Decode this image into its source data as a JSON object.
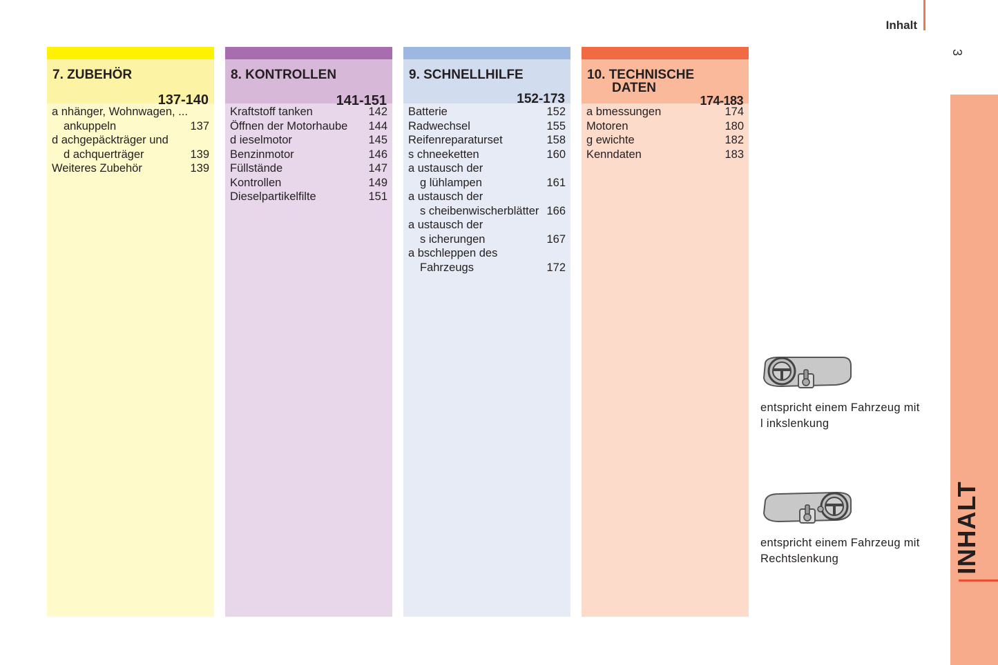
{
  "header": {
    "title": "Inhalt",
    "page_number": "3"
  },
  "side_tab": {
    "label": "INHALT"
  },
  "columns": [
    {
      "title": "7. ZUBEHÖR",
      "range": "137-140",
      "items": [
        {
          "line1": "a nhänger, Wohnwagen, ...",
          "line2": "ankuppeln",
          "page": "137"
        },
        {
          "line1": "d achgepäckträger und",
          "line2": "d achquerträger",
          "page": "139"
        },
        {
          "line1": "Weiteres Zubehör",
          "line2": "",
          "page": "139"
        }
      ]
    },
    {
      "title": "8. KONTROLLEN",
      "range": "141-151",
      "items": [
        {
          "line1": "Kraftstoff tanken",
          "line2": "",
          "page": "142"
        },
        {
          "line1": "Öffnen der Motorhaube",
          "line2": "",
          "page": "144"
        },
        {
          "line1": "d ieselmotor",
          "line2": "",
          "page": "145"
        },
        {
          "line1": "Benzinmotor",
          "line2": "",
          "page": "146"
        },
        {
          "line1": "Füllstände",
          "line2": "",
          "page": "147"
        },
        {
          "line1": "Kontrollen",
          "line2": "",
          "page": "149"
        },
        {
          "line1": "Dieselpartikelfilte",
          "line2": "",
          "page": "151"
        }
      ]
    },
    {
      "title": "9. SCHNELLHILFE",
      "range": "152-173",
      "items": [
        {
          "line1": "Batterie",
          "line2": "",
          "page": "152"
        },
        {
          "line1": "Radwechsel",
          "line2": "",
          "page": "155"
        },
        {
          "line1": "Reifenreparaturset",
          "line2": "",
          "page": "158"
        },
        {
          "line1": "s chneeketten",
          "line2": "",
          "page": "160"
        },
        {
          "line1": "a ustausch der",
          "line2": "g lühlampen",
          "page": "161"
        },
        {
          "line1": "a ustausch der",
          "line2": "s cheibenwischerblätter",
          "page": "166"
        },
        {
          "line1": "a ustausch der",
          "line2": "s icherungen",
          "page": "167"
        },
        {
          "line1": "a bschleppen des",
          "line2": "Fahrzeugs",
          "page": "172"
        }
      ]
    },
    {
      "title_line1": "10. TECHNISCHE",
      "title_line2": "DATEN",
      "range": "174-183",
      "items": [
        {
          "line1": "a bmessungen",
          "line2": "",
          "page": "174"
        },
        {
          "line1": "Motoren",
          "line2": "",
          "page": "180"
        },
        {
          "line1": "g ewichte",
          "line2": "",
          "page": "182"
        },
        {
          "line1": "Kenndaten",
          "line2": "",
          "page": "183"
        }
      ]
    }
  ],
  "notes": [
    {
      "icon": "left-hand-drive-dashboard-icon",
      "line1": "entspricht einem Fahrzeug mit",
      "line2": "l inkslenkung"
    },
    {
      "icon": "right-hand-drive-dashboard-icon",
      "line1": "entspricht einem Fahrzeug mit",
      "line2": "Rechtslenkung"
    }
  ],
  "colors": {
    "accent": "#f26a43",
    "side_tab": "#f7ab8a",
    "zubehoer": "#fef200",
    "kontrollen": "#a86dae",
    "schnellhilfe": "#9db8e0",
    "technische_daten": "#f26a43"
  }
}
